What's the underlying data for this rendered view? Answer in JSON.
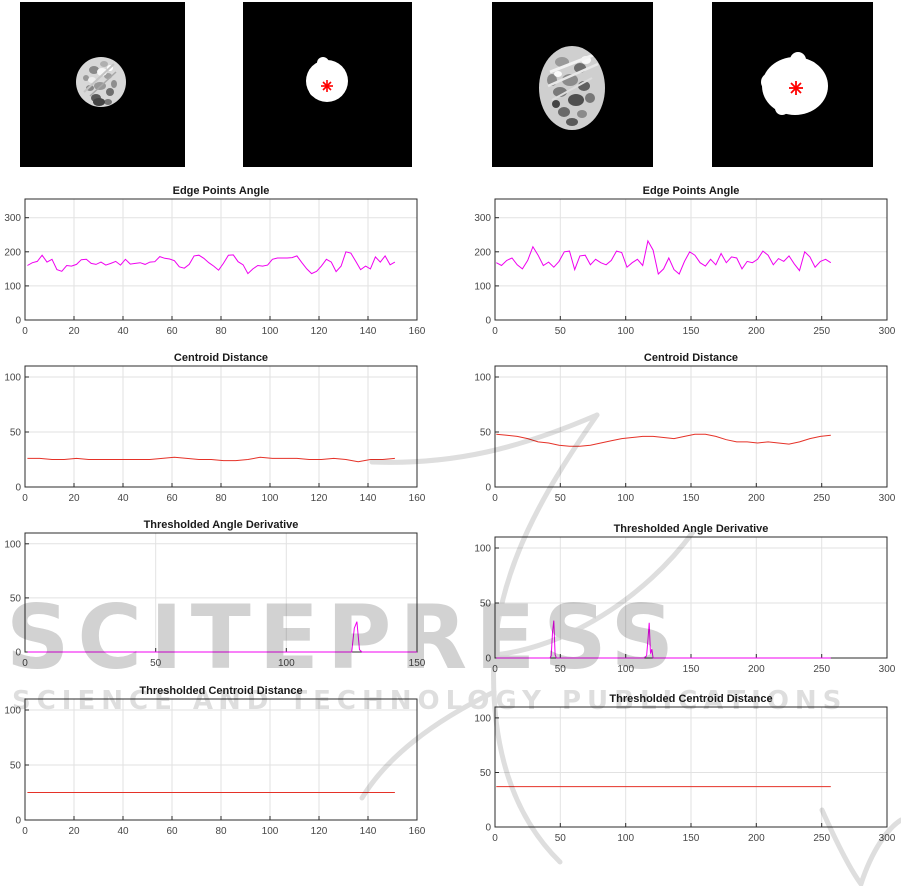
{
  "watermark": {
    "brand": "SCITEPRESS",
    "tagline": "SCIENCE AND TECHNOLOGY PUBLICATIONS",
    "color": "#d2d2d2"
  },
  "colors": {
    "angle_line": "#f000f0",
    "distance_line": "#e53228",
    "centroid_marker": "#ff0000",
    "grid": "#e2e2e2",
    "axis": "#2b2b2b"
  },
  "panels": [
    {
      "label": "segmented grayscale object (small)",
      "background": "#000000"
    },
    {
      "label": "binary mask (small) with red centroid asterisk",
      "background": "#000000"
    },
    {
      "label": "segmented grayscale object (large)",
      "background": "#000000"
    },
    {
      "label": "binary mask (large) with red centroid asterisk",
      "background": "#000000"
    }
  ],
  "chart_data": [
    {
      "type": "line",
      "title": "Edge Points Angle",
      "xlim": [
        0,
        160
      ],
      "ylim": [
        0,
        355
      ],
      "grid": true,
      "xticks": [
        0,
        20,
        40,
        60,
        80,
        100,
        120,
        140,
        160
      ],
      "yticks": [
        0,
        100,
        200,
        300
      ],
      "line_color": "#f000f0",
      "x": [
        1,
        3,
        5,
        7,
        9,
        11,
        13,
        15,
        17,
        19,
        21,
        23,
        25,
        27,
        29,
        31,
        33,
        35,
        37,
        39,
        41,
        43,
        45,
        47,
        49,
        51,
        53,
        55,
        57,
        59,
        61,
        63,
        65,
        67,
        69,
        71,
        73,
        75,
        77,
        79,
        81,
        83,
        85,
        87,
        89,
        91,
        93,
        95,
        97,
        99,
        101,
        103,
        105,
        107,
        109,
        111,
        113,
        115,
        117,
        119,
        121,
        123,
        125,
        127,
        129,
        131,
        133,
        135,
        137,
        139,
        141,
        143,
        145,
        147,
        149,
        151
      ],
      "y": [
        160,
        168,
        172,
        190,
        170,
        178,
        148,
        143,
        160,
        158,
        163,
        177,
        178,
        166,
        163,
        170,
        161,
        166,
        172,
        161,
        178,
        164,
        166,
        168,
        163,
        170,
        171,
        186,
        181,
        179,
        174,
        156,
        152,
        163,
        188,
        190,
        181,
        168,
        158,
        146,
        166,
        190,
        191,
        171,
        162,
        136,
        150,
        160,
        158,
        161,
        178,
        182,
        182,
        182,
        183,
        188,
        168,
        150,
        136,
        143,
        158,
        178,
        170,
        142,
        158,
        200,
        196,
        172,
        148,
        158,
        150,
        185,
        170,
        188,
        162,
        170
      ]
    },
    {
      "type": "line",
      "title": "Edge Points Angle",
      "xlim": [
        0,
        300
      ],
      "ylim": [
        0,
        355
      ],
      "grid": true,
      "xticks": [
        0,
        50,
        100,
        150,
        200,
        250,
        300
      ],
      "yticks": [
        0,
        100,
        200,
        300
      ],
      "line_color": "#f000f0",
      "x": [
        1,
        5,
        9,
        13,
        17,
        21,
        25,
        29,
        33,
        37,
        41,
        45,
        49,
        53,
        57,
        61,
        65,
        69,
        73,
        77,
        81,
        85,
        89,
        93,
        97,
        101,
        105,
        109,
        113,
        117,
        121,
        125,
        129,
        133,
        137,
        141,
        145,
        149,
        153,
        157,
        161,
        165,
        169,
        173,
        177,
        181,
        185,
        189,
        193,
        197,
        201,
        205,
        209,
        213,
        217,
        221,
        225,
        229,
        233,
        237,
        241,
        245,
        249,
        253,
        257
      ],
      "y": [
        168,
        160,
        175,
        182,
        162,
        150,
        175,
        215,
        190,
        160,
        170,
        155,
        172,
        200,
        202,
        148,
        188,
        190,
        162,
        178,
        168,
        162,
        175,
        202,
        198,
        155,
        168,
        178,
        160,
        232,
        205,
        135,
        150,
        182,
        148,
        135,
        172,
        200,
        190,
        168,
        158,
        178,
        162,
        195,
        168,
        185,
        182,
        150,
        172,
        168,
        178,
        202,
        190,
        162,
        180,
        172,
        188,
        165,
        145,
        200,
        185,
        155,
        172,
        178,
        168
      ]
    },
    {
      "type": "line",
      "title": "Centroid Distance",
      "xlim": [
        0,
        160
      ],
      "ylim": [
        0,
        110
      ],
      "grid": true,
      "xticks": [
        0,
        20,
        40,
        60,
        80,
        100,
        120,
        140,
        160
      ],
      "yticks": [
        0,
        50,
        100
      ],
      "line_color": "#e53228",
      "x": [
        1,
        6,
        11,
        16,
        21,
        26,
        31,
        36,
        41,
        46,
        51,
        56,
        61,
        66,
        71,
        76,
        81,
        86,
        91,
        96,
        101,
        106,
        111,
        116,
        121,
        126,
        131,
        136,
        141,
        146,
        151
      ],
      "y": [
        26,
        26,
        25,
        25,
        26,
        25,
        25,
        25,
        25,
        25,
        25,
        26,
        27,
        26,
        25,
        25,
        24,
        24,
        25,
        27,
        26,
        26,
        26,
        25,
        25,
        26,
        25,
        23,
        25,
        25,
        26
      ]
    },
    {
      "type": "line",
      "title": "Centroid Distance",
      "xlim": [
        0,
        300
      ],
      "ylim": [
        0,
        110
      ],
      "grid": true,
      "xticks": [
        0,
        50,
        100,
        150,
        200,
        250,
        300
      ],
      "yticks": [
        0,
        50,
        100
      ],
      "line_color": "#e53228",
      "x": [
        1,
        9,
        17,
        25,
        33,
        41,
        49,
        57,
        65,
        73,
        81,
        89,
        97,
        105,
        113,
        121,
        129,
        137,
        145,
        153,
        161,
        169,
        177,
        185,
        193,
        201,
        209,
        217,
        225,
        233,
        241,
        249,
        257
      ],
      "y": [
        48,
        47,
        46,
        44,
        41,
        40,
        38,
        37,
        37,
        38,
        40,
        42,
        44,
        45,
        46,
        46,
        45,
        44,
        46,
        48,
        48,
        46,
        43,
        41,
        41,
        40,
        41,
        40,
        39,
        41,
        44,
        46,
        47
      ]
    },
    {
      "type": "line",
      "title": "Thresholded Angle Derivative",
      "xlim": [
        0,
        150
      ],
      "ylim": [
        0,
        110
      ],
      "grid": true,
      "xticks": [
        0,
        50,
        100,
        150
      ],
      "yticks": [
        0,
        50,
        100
      ],
      "line_color": "#f000f0",
      "x": [
        1,
        120,
        125,
        126,
        127,
        128,
        129,
        150
      ],
      "y": [
        0,
        0,
        0,
        22,
        28,
        2,
        0,
        0
      ]
    },
    {
      "type": "line",
      "title": "Thresholded Angle Derivative",
      "xlim": [
        0,
        300
      ],
      "ylim": [
        0,
        110
      ],
      "grid": true,
      "xticks": [
        0,
        50,
        100,
        150,
        200,
        250,
        300
      ],
      "yticks": [
        0,
        50,
        100
      ],
      "line_color": "#f000f0",
      "x": [
        1,
        42,
        43,
        44,
        45,
        46,
        47,
        114,
        116,
        117,
        118,
        119,
        120,
        121,
        257
      ],
      "y": [
        0,
        0,
        2,
        23,
        34,
        3,
        0,
        0,
        2,
        16,
        32,
        4,
        8,
        0,
        0
      ]
    },
    {
      "type": "line",
      "title": "Thresholded Centroid Distance",
      "xlim": [
        0,
        160
      ],
      "ylim": [
        0,
        110
      ],
      "grid": true,
      "xticks": [
        0,
        20,
        40,
        60,
        80,
        100,
        120,
        140,
        160
      ],
      "yticks": [
        0,
        50,
        100
      ],
      "line_color": "#e53228",
      "x": [
        1,
        151
      ],
      "y": [
        25,
        25
      ]
    },
    {
      "type": "line",
      "title": "Thresholded Centroid Distance",
      "xlim": [
        0,
        300
      ],
      "ylim": [
        0,
        110
      ],
      "grid": true,
      "xticks": [
        0,
        50,
        100,
        150,
        200,
        250,
        300
      ],
      "yticks": [
        0,
        50,
        100
      ],
      "line_color": "#e53228",
      "x": [
        1,
        257
      ],
      "y": [
        37,
        37
      ]
    }
  ]
}
